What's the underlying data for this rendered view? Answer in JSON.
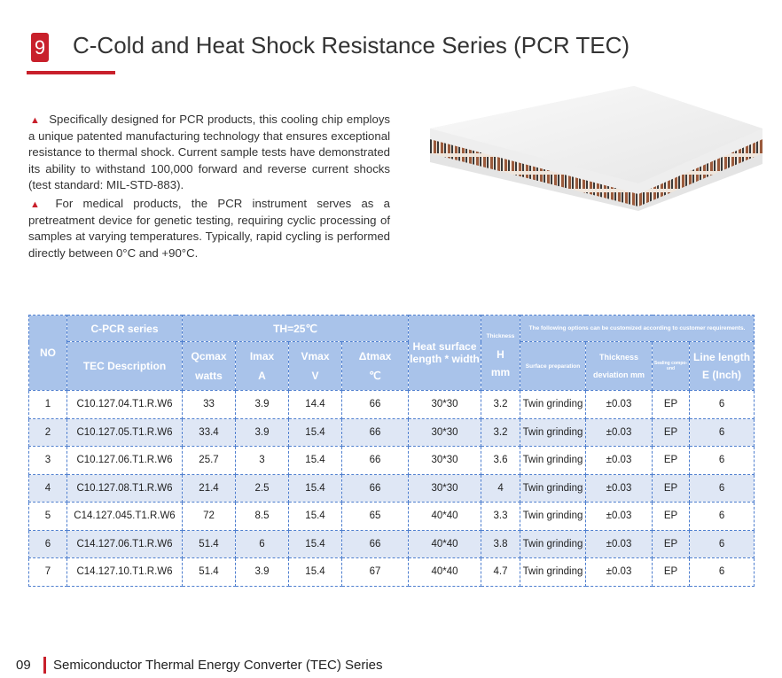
{
  "header": {
    "number": "9",
    "title": "C-Cold and Heat Shock Resistance Series (PCR TEC)"
  },
  "paragraphs": [
    "Specifically designed for PCR products, this cooling chip employs a unique patented manufacturing technology that ensures exceptional resistance to thermal shock. Current sample tests have demonstrated its ability to withstand 100,000 forward and reverse current shocks (test standard: MIL-STD-883).",
    "For medical products, the PCR instrument serves as a pretreatment device for genetic testing, requiring cyclic processing of samples at varying temperatures. Typically, rapid cycling is performed directly between 0°C and +90°C."
  ],
  "table": {
    "header": {
      "no": "NO",
      "series": "C-PCR series",
      "description": "TEC Description",
      "th": "TH=25℃",
      "qcmax": "Qcmax",
      "watts": "watts",
      "imax": "Imax",
      "amps": "A",
      "vmax": "Vmax",
      "volts": "V",
      "dtmax": "Δtmax",
      "celsius": "℃",
      "heat_surface_1": "Heat surface",
      "heat_surface_2": "length * width",
      "thickness": "Thickness",
      "h": "H",
      "mm": "mm",
      "options": "The following options can be customized according to customer requirements.",
      "surface_prep": "Surface preparation",
      "thickness_dev_1": "Thickness",
      "thickness_dev_2": "deviation mm",
      "sealing": "Sealing compo-und",
      "line_length_1": "Line length",
      "line_length_2": "E (Inch)"
    },
    "rows": [
      [
        "1",
        "C10.127.04.T1.R.W6",
        "33",
        "3.9",
        "14.4",
        "66",
        "30*30",
        "3.2",
        "Twin grinding",
        "±0.03",
        "EP",
        "6"
      ],
      [
        "2",
        "C10.127.05.T1.R.W6",
        "33.4",
        "3.9",
        "15.4",
        "66",
        "30*30",
        "3.2",
        "Twin grinding",
        "±0.03",
        "EP",
        "6"
      ],
      [
        "3",
        "C10.127.06.T1.R.W6",
        "25.7",
        "3",
        "15.4",
        "66",
        "30*30",
        "3.6",
        "Twin grinding",
        "±0.03",
        "EP",
        "6"
      ],
      [
        "4",
        "C10.127.08.T1.R.W6",
        "21.4",
        "2.5",
        "15.4",
        "66",
        "30*30",
        "4",
        "Twin grinding",
        "±0.03",
        "EP",
        "6"
      ],
      [
        "5",
        "C14.127.045.T1.R.W6",
        "72",
        "8.5",
        "15.4",
        "65",
        "40*40",
        "3.3",
        "Twin grinding",
        "±0.03",
        "EP",
        "6"
      ],
      [
        "6",
        "C14.127.06.T1.R.W6",
        "51.4",
        "6",
        "15.4",
        "66",
        "40*40",
        "3.8",
        "Twin grinding",
        "±0.03",
        "EP",
        "6"
      ],
      [
        "7",
        "C14.127.10.T1.R.W6",
        "51.4",
        "3.9",
        "15.4",
        "67",
        "40*40",
        "4.7",
        "Twin grinding",
        "±0.03",
        "EP",
        "6"
      ]
    ]
  },
  "footer": {
    "page": "09",
    "title": "Semiconductor Thermal Energy Converter (TEC) Series"
  }
}
